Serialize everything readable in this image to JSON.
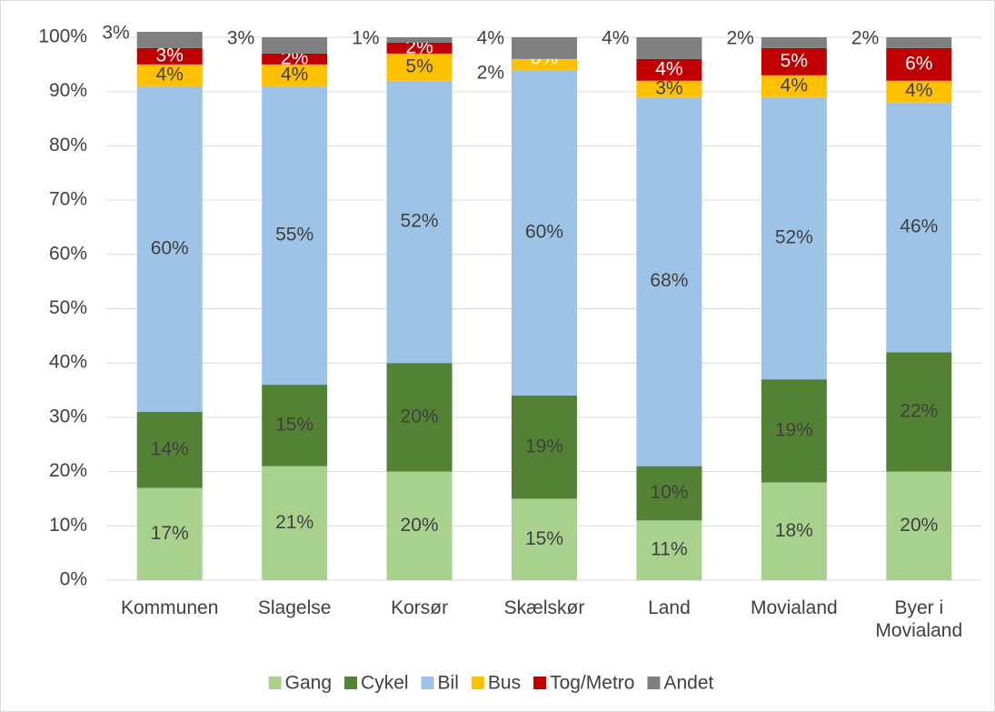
{
  "chart_data": {
    "type": "stacked_bar",
    "categories": [
      "Kommunen",
      "Slagelse",
      "Korsør",
      "Skælskør",
      "Land",
      "Movialand",
      "Byer i Movialand"
    ],
    "series": [
      {
        "name": "Gang",
        "color": "#a9d18e",
        "values": [
          17,
          21,
          20,
          15,
          11,
          18,
          20
        ],
        "value_labels": [
          "17%",
          "21%",
          "20%",
          "15%",
          "11%",
          "18%",
          "20%"
        ]
      },
      {
        "name": "Cykel",
        "color": "#548235",
        "values": [
          14,
          15,
          20,
          19,
          10,
          19,
          22
        ],
        "value_labels": [
          "14%",
          "15%",
          "20%",
          "19%",
          "10%",
          "19%",
          "22%"
        ]
      },
      {
        "name": "Bil",
        "color": "#9dc3e6",
        "values": [
          60,
          55,
          52,
          60,
          68,
          52,
          46
        ],
        "value_labels": [
          "60%",
          "55%",
          "52%",
          "60%",
          "68%",
          "52%",
          "46%"
        ]
      },
      {
        "name": "Bus",
        "color": "#ffc000",
        "values": [
          4,
          4,
          5,
          2,
          3,
          4,
          4
        ],
        "value_labels": [
          "4%",
          "4%",
          "5%",
          "2%",
          "3%",
          "4%",
          "4%"
        ]
      },
      {
        "name": "Tog/Metro",
        "color": "#c00000",
        "values": [
          3,
          2,
          2,
          0,
          4,
          5,
          6
        ],
        "value_labels": [
          "3%",
          "2%",
          "2%",
          "0%",
          "4%",
          "5%",
          "6%"
        ]
      },
      {
        "name": "Andet",
        "color": "#7f7f7f",
        "values": [
          3,
          3,
          1,
          4,
          4,
          2,
          2
        ],
        "value_labels": [
          "3%",
          "3%",
          "1%",
          "4%",
          "4%",
          "2%",
          "2%"
        ]
      }
    ],
    "ylim": [
      0,
      100
    ],
    "yticks": [
      {
        "value": 0,
        "label": "0%"
      },
      {
        "value": 10,
        "label": "10%"
      },
      {
        "value": 20,
        "label": "20%"
      },
      {
        "value": 30,
        "label": "30%"
      },
      {
        "value": 40,
        "label": "40%"
      },
      {
        "value": 50,
        "label": "50%"
      },
      {
        "value": 60,
        "label": "60%"
      },
      {
        "value": 70,
        "label": "70%"
      },
      {
        "value": 80,
        "label": "80%"
      },
      {
        "value": 90,
        "label": "90%"
      },
      {
        "value": 100,
        "label": "100%"
      }
    ],
    "grid": true,
    "legend": "bottom"
  }
}
